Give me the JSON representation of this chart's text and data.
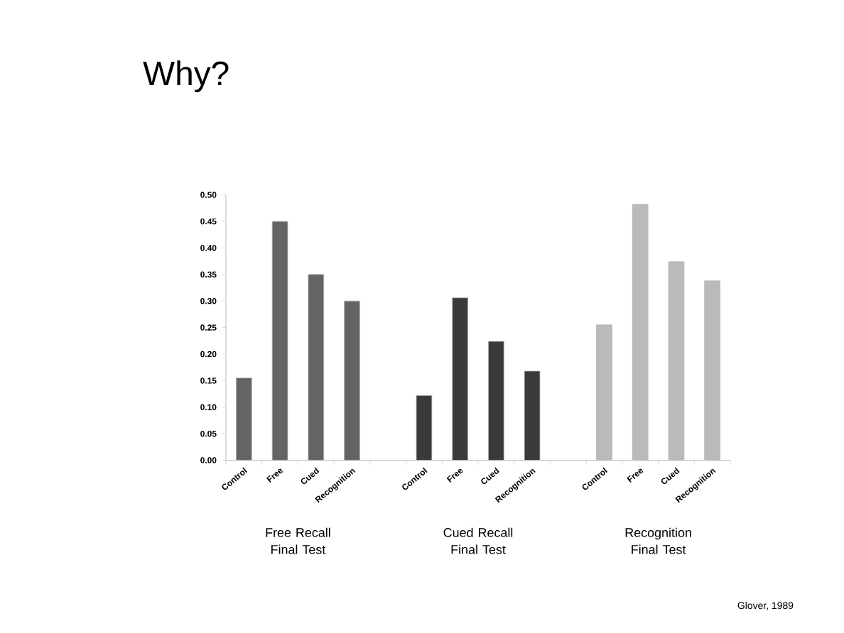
{
  "chart_data": {
    "type": "bar",
    "title": "Why?",
    "categories": [
      "Control",
      "Free",
      "Cued",
      "Recognition",
      null,
      "Control",
      "Free",
      "Cued",
      "Recognition",
      null,
      "Control",
      "Free",
      "Cued",
      "Recognition"
    ],
    "series": [
      {
        "color": "#646464",
        "values": [
          0.155,
          0.45,
          0.35,
          0.3,
          null,
          null,
          null,
          null,
          null,
          null,
          null,
          null,
          null,
          null
        ]
      },
      {
        "color": "#3a3a3a",
        "values": [
          null,
          null,
          null,
          null,
          null,
          0.122,
          0.306,
          0.224,
          0.168,
          null,
          null,
          null,
          null,
          null
        ]
      },
      {
        "color": "#bababa",
        "values": [
          null,
          null,
          null,
          null,
          null,
          null,
          null,
          null,
          null,
          null,
          0.255,
          0.482,
          0.374,
          0.338
        ]
      }
    ],
    "ylim": [
      0,
      0.5
    ],
    "yticks": [
      {
        "value": 0,
        "label": "0.00"
      },
      {
        "value": 0.05,
        "label": "0.05"
      },
      {
        "value": 0.1,
        "label": "0.10"
      },
      {
        "value": 0.15,
        "label": "0.15"
      },
      {
        "value": 0.2,
        "label": "0.20"
      },
      {
        "value": 0.25,
        "label": "0.25"
      },
      {
        "value": 0.3,
        "label": "0.30"
      },
      {
        "value": 0.35,
        "label": "0.35"
      },
      {
        "value": 0.4,
        "label": "0.40"
      },
      {
        "value": 0.45,
        "label": "0.45"
      },
      {
        "value": 0.5,
        "label": "0.50"
      }
    ],
    "grid": false,
    "annotations": [
      "Free Recall Final Test",
      "Cued Recall Final Test",
      "Recognition Final Test",
      "Glover, 1989"
    ]
  }
}
